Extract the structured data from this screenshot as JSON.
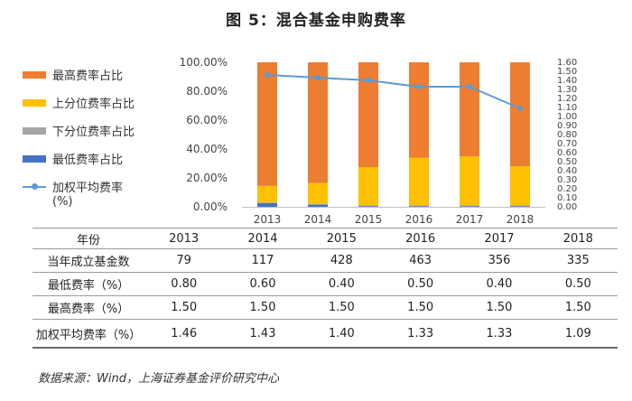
{
  "title": "图 5：混合基金申购费率",
  "legend": {
    "max_share": "最高费率占比",
    "upper_share": "上分位费率占比",
    "lower_share": "下分位费率占比",
    "min_share": "最低费率占比",
    "avg_rate_line1": "加权平均费率",
    "avg_rate_line2": "(%)"
  },
  "colors": {
    "max": "#ED7D31",
    "upper": "#FFC000",
    "lower": "#A5A5A5",
    "min": "#4472C4",
    "avg": "#5B9BD5"
  },
  "chart_data": {
    "type": "bar",
    "stacked": true,
    "title": "图 5：混合基金申购费率",
    "categories": [
      "2013",
      "2014",
      "2015",
      "2016",
      "2017",
      "2018"
    ],
    "series": [
      {
        "name": "最低费率占比",
        "values": [
          2.5,
          1.5,
          0.5,
          0.5,
          0.5,
          0.5
        ]
      },
      {
        "name": "下分位费率占比",
        "values": [
          0.5,
          0.5,
          0.5,
          0.5,
          0.5,
          0.5
        ]
      },
      {
        "name": "上分位费率占比",
        "values": [
          11.5,
          14.5,
          26.5,
          33.0,
          34.0,
          27.0
        ]
      },
      {
        "name": "最高费率占比",
        "values": [
          85.5,
          83.5,
          72.5,
          66.0,
          65.0,
          72.0
        ]
      }
    ],
    "line_series": {
      "name": "加权平均费率(%)",
      "axis": "right",
      "values": [
        1.46,
        1.43,
        1.4,
        1.33,
        1.33,
        1.09
      ]
    },
    "left_axis": {
      "min": 0,
      "max": 100,
      "step": 20,
      "ticks": [
        "0.00%",
        "20.00%",
        "40.00%",
        "60.00%",
        "80.00%",
        "100.00%"
      ]
    },
    "right_axis": {
      "min": 0,
      "max": 1.6,
      "step": 0.1,
      "ticks": [
        "0.00",
        "0.10",
        "0.20",
        "0.30",
        "0.40",
        "0.50",
        "0.60",
        "0.70",
        "0.80",
        "0.90",
        "1.00",
        "1.10",
        "1.20",
        "1.30",
        "1.40",
        "1.50",
        "1.60"
      ]
    },
    "legend_position": "left"
  },
  "table": {
    "header": [
      "年份",
      "2013",
      "2014",
      "2015",
      "2016",
      "2017",
      "2018"
    ],
    "rows": [
      [
        "当年成立基金数",
        "79",
        "117",
        "428",
        "463",
        "356",
        "335"
      ],
      [
        "最低费率（%）",
        "0.80",
        "0.60",
        "0.40",
        "0.50",
        "0.40",
        "0.50"
      ],
      [
        "最高费率（%）",
        "1.50",
        "1.50",
        "1.50",
        "1.50",
        "1.50",
        "1.50"
      ],
      [
        "加权平均费率（%）",
        "1.46",
        "1.43",
        "1.40",
        "1.33",
        "1.33",
        "1.09"
      ]
    ]
  },
  "source": "数据来源：Wind，上海证券基金评价研究中心"
}
